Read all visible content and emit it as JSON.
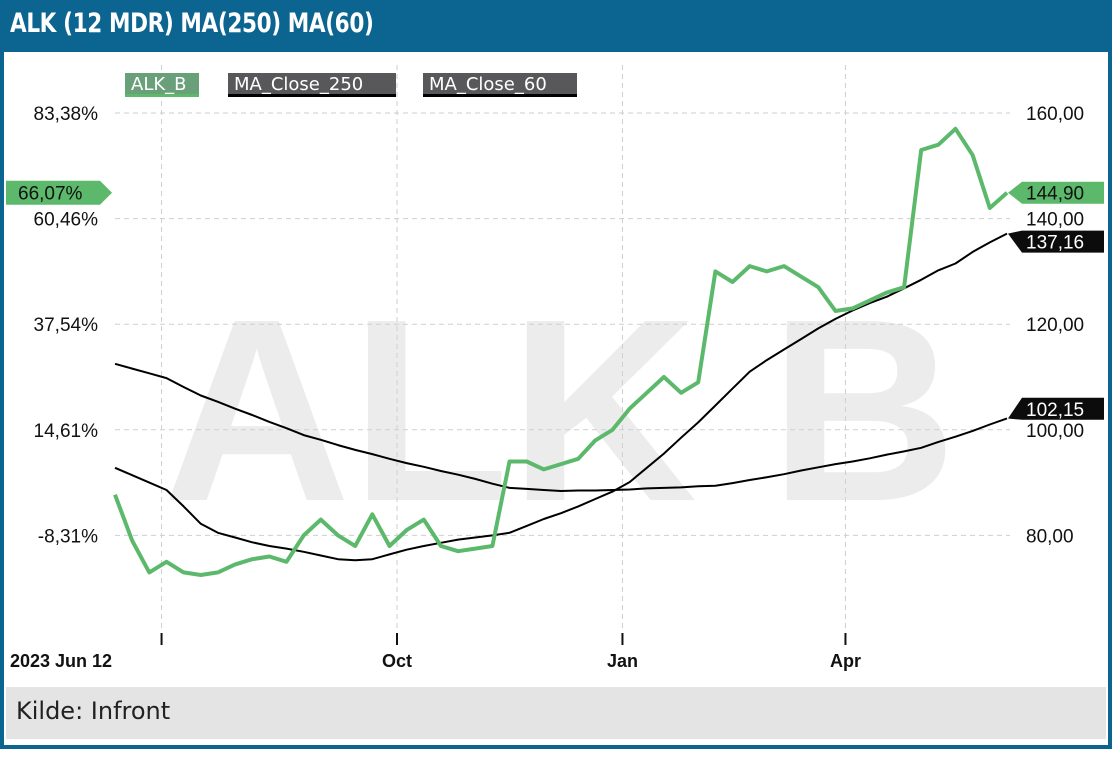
{
  "header": {
    "title": "ALK (12 MDR) MA(250) MA(60)"
  },
  "footer": {
    "source": "Kilde: Infront"
  },
  "watermark": "ALK B",
  "colors": {
    "header": "#0b6590",
    "price": "#5cb96b",
    "ma": "#000000",
    "footer": "#e4e4e4"
  },
  "chart_data": {
    "type": "line",
    "title": "ALK (12 MDR) MA(250) MA(60)",
    "legend": [
      "ALK_B",
      "MA_Close_250",
      "MA_Close_60"
    ],
    "legend_placement": "top",
    "grid": true,
    "y_right": {
      "ticks": [
        160,
        140,
        120,
        100,
        80
      ],
      "tick_labels": [
        "160,00",
        "140,00",
        "120,00",
        "100,00",
        "80,00"
      ],
      "range": [
        62,
        163
      ]
    },
    "y_left": {
      "tick_labels": [
        "83,38%",
        "60,46%",
        "37,54%",
        "14,61%",
        "-8,31%"
      ]
    },
    "x_ticks": [
      {
        "date": "2023-07-01",
        "label": ""
      },
      {
        "date": "2023-10-01",
        "label": "Oct"
      },
      {
        "date": "2024-01-01",
        "label": "Jan"
      },
      {
        "date": "2024-04-01",
        "label": "Apr"
      }
    ],
    "x_start_label": "2023 Jun 12",
    "last_values": {
      "price": "144,90",
      "price_pct": "66,07%",
      "ma60": "137,16",
      "ma250": "102,15"
    },
    "x": [
      "2023-06-12",
      "2023-06-19",
      "2023-06-26",
      "2023-07-03",
      "2023-07-10",
      "2023-07-17",
      "2023-07-24",
      "2023-07-31",
      "2023-08-07",
      "2023-08-14",
      "2023-08-21",
      "2023-08-28",
      "2023-09-04",
      "2023-09-11",
      "2023-09-18",
      "2023-09-25",
      "2023-10-02",
      "2023-10-09",
      "2023-10-16",
      "2023-10-23",
      "2023-10-30",
      "2023-11-06",
      "2023-11-13",
      "2023-11-20",
      "2023-11-27",
      "2023-12-04",
      "2023-12-11",
      "2023-12-18",
      "2023-12-25",
      "2024-01-01",
      "2024-01-08",
      "2024-01-15",
      "2024-01-22",
      "2024-01-29",
      "2024-02-05",
      "2024-02-12",
      "2024-02-19",
      "2024-02-26",
      "2024-03-04",
      "2024-03-11",
      "2024-03-18",
      "2024-03-25",
      "2024-04-01",
      "2024-04-08",
      "2024-04-15",
      "2024-04-22",
      "2024-04-29",
      "2024-05-06",
      "2024-05-13",
      "2024-05-20",
      "2024-05-27",
      "2024-06-03",
      "2024-06-10"
    ],
    "series": [
      {
        "name": "ALK_B",
        "color": "#5cb96b",
        "values": [
          87.7,
          79,
          73,
          75,
          73,
          72.5,
          73,
          74.5,
          75.5,
          76,
          75,
          80,
          83,
          80,
          78,
          84,
          78,
          81,
          83,
          78,
          77,
          77.5,
          78,
          94,
          94,
          92.5,
          93.5,
          94.5,
          98,
          100,
          104,
          107,
          110,
          107,
          109,
          130,
          128,
          131,
          130,
          131,
          129,
          127,
          122.5,
          123,
          124.5,
          126,
          127,
          153,
          154,
          157,
          152,
          142,
          144.9
        ]
      },
      {
        "name": "MA_Close_250",
        "color": "#000000",
        "values": [
          112.5,
          111.6,
          110.7,
          109.8,
          108.1,
          106.5,
          105.3,
          104.0,
          102.8,
          101.5,
          100.3,
          99.0,
          98.1,
          97.1,
          96.2,
          95.4,
          94.5,
          93.7,
          93.0,
          92.2,
          91.5,
          90.7,
          89.8,
          89.0,
          88.8,
          88.6,
          88.4,
          88.5,
          88.5,
          88.6,
          88.7,
          88.9,
          89.0,
          89.1,
          89.3,
          89.4,
          89.9,
          90.5,
          91.0,
          91.6,
          92.3,
          92.9,
          93.5,
          94.0,
          94.6,
          95.3,
          95.9,
          96.6,
          97.7,
          98.7,
          99.8,
          101.0,
          102.15
        ]
      },
      {
        "name": "MA_Close_60",
        "color": "#000000",
        "values": [
          92.8,
          91.4,
          90.0,
          88.6,
          85.5,
          82.2,
          80.5,
          79.6,
          78.7,
          78.0,
          77.5,
          76.9,
          76.2,
          75.5,
          75.3,
          75.5,
          76.4,
          77.3,
          78.0,
          78.6,
          79.2,
          79.6,
          80.0,
          80.5,
          81.8,
          83.1,
          84.2,
          85.5,
          86.9,
          88.3,
          90.1,
          92.8,
          95.5,
          98.5,
          101.4,
          104.6,
          107.8,
          111.0,
          113.2,
          115.2,
          117.2,
          119.2,
          121.0,
          122.6,
          124.0,
          125.2,
          126.8,
          128.4,
          130.2,
          131.5,
          133.7,
          135.5,
          137.16
        ]
      }
    ]
  }
}
